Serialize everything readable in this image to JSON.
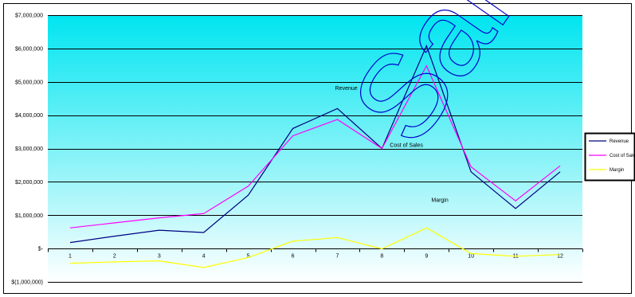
{
  "chart_data": {
    "type": "line",
    "categories": [
      "1",
      "2",
      "3",
      "4",
      "5",
      "6",
      "7",
      "8",
      "9",
      "10",
      "11",
      "12"
    ],
    "series": [
      {
        "name": "Revenue",
        "color": "#000080",
        "values": [
          180000,
          370000,
          550000,
          480000,
          1600000,
          3600000,
          4200000,
          3000000,
          6080000,
          2300000,
          1200000,
          2300000
        ]
      },
      {
        "name": "Cost of Sales",
        "color": "#ff00ff",
        "values": [
          620000,
          770000,
          920000,
          1050000,
          1870000,
          3380000,
          3870000,
          3000000,
          5480000,
          2450000,
          1430000,
          2480000
        ]
      },
      {
        "name": "Margin",
        "color": "#ffff00",
        "values": [
          -440000,
          -400000,
          -370000,
          -570000,
          -270000,
          220000,
          330000,
          -10000,
          620000,
          -150000,
          -230000,
          -180000
        ]
      }
    ],
    "y_ticks": [
      "$7,000,000",
      "$6,000,000",
      "$5,000,000",
      "$4,000,000",
      "$3,000,000",
      "$2,000,000",
      "$1,000,000",
      "$-",
      "$(1,000,000)"
    ],
    "ylim": [
      -1000000,
      7000000
    ],
    "grid": true,
    "legend_position": "right",
    "annotations": [
      {
        "text": "Revenue",
        "x": 7.2,
        "y": 4750000
      },
      {
        "text": "Cost of Sales",
        "x": 8.55,
        "y": 3050000
      },
      {
        "text": "Margin",
        "x": 9.3,
        "y": 1400000
      }
    ],
    "background_gradient": [
      "#00e5f0",
      "#ffffff"
    ]
  },
  "watermark": {
    "text": "Sample"
  },
  "legend": {
    "items": [
      {
        "label": "Revenue",
        "color": "#000080"
      },
      {
        "label": "Cost of Sales",
        "color": "#ff00ff"
      },
      {
        "label": "Margin",
        "color": "#ffff00"
      }
    ]
  }
}
